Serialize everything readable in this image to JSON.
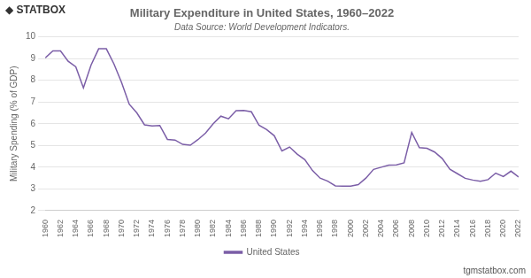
{
  "chart_data": {
    "type": "line",
    "title": "Military Expenditure in United States, 1960–2022",
    "subtitle": "Data Source: World Development Indicators.",
    "ylabel": "Military Spending (% of GDP)",
    "annotations": [
      "◆ STATBOX",
      "tgmstatbox.com"
    ],
    "x": [
      1960,
      1961,
      1962,
      1963,
      1964,
      1965,
      1966,
      1967,
      1968,
      1969,
      1970,
      1971,
      1972,
      1973,
      1974,
      1975,
      1976,
      1977,
      1978,
      1979,
      1980,
      1981,
      1982,
      1983,
      1984,
      1985,
      1986,
      1987,
      1988,
      1989,
      1990,
      1991,
      1992,
      1993,
      1994,
      1995,
      1996,
      1997,
      1998,
      1999,
      2000,
      2001,
      2002,
      2003,
      2004,
      2005,
      2006,
      2007,
      2008,
      2009,
      2010,
      2011,
      2012,
      2013,
      2014,
      2015,
      2016,
      2017,
      2018,
      2019,
      2020,
      2021,
      2022
    ],
    "series": [
      {
        "name": "United States",
        "color": "#7B5EA7",
        "values": [
          9.03,
          9.35,
          9.35,
          8.88,
          8.62,
          7.65,
          8.7,
          9.45,
          9.45,
          8.75,
          7.9,
          6.9,
          6.5,
          5.95,
          5.9,
          5.92,
          5.28,
          5.25,
          5.05,
          5.01,
          5.27,
          5.57,
          6.0,
          6.35,
          6.23,
          6.6,
          6.61,
          6.55,
          5.93,
          5.73,
          5.45,
          4.75,
          4.93,
          4.6,
          4.35,
          3.85,
          3.5,
          3.36,
          3.14,
          3.13,
          3.13,
          3.2,
          3.5,
          3.9,
          4.0,
          4.1,
          4.11,
          4.2,
          5.6,
          4.9,
          4.87,
          4.7,
          4.4,
          3.91,
          3.7,
          3.49,
          3.41,
          3.35,
          3.43,
          3.73,
          3.57,
          3.82,
          3.55
        ]
      }
    ],
    "xlim": [
      1960,
      2022
    ],
    "xticks": [
      1960,
      1962,
      1964,
      1966,
      1968,
      1970,
      1972,
      1974,
      1976,
      1978,
      1980,
      1982,
      1984,
      1986,
      1988,
      1990,
      1992,
      1994,
      1996,
      1998,
      2000,
      2002,
      2004,
      2006,
      2008,
      2010,
      2012,
      2014,
      2016,
      2018,
      2020,
      2022
    ],
    "ylim": [
      2,
      10
    ],
    "yticks": [
      2,
      3,
      4,
      5,
      6,
      7,
      8,
      9,
      10
    ],
    "grid": "y",
    "legend": "bottom"
  }
}
